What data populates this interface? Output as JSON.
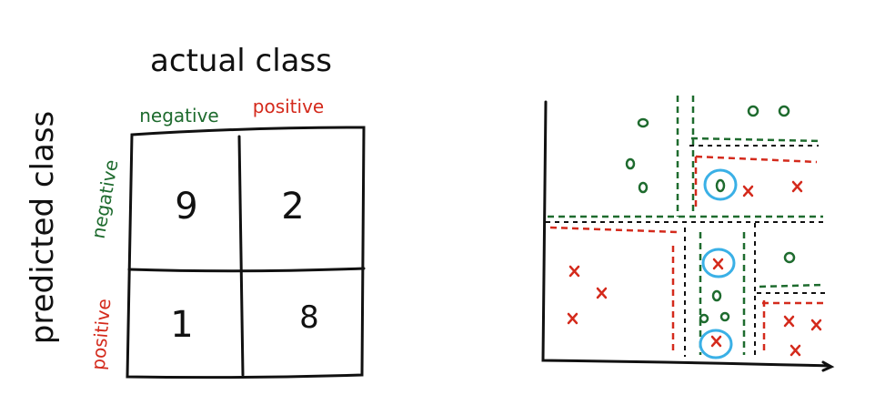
{
  "matrix": {
    "title": "actual class",
    "row_title": "predicted class",
    "columns": [
      "negative",
      "positive"
    ],
    "rows": [
      "negative",
      "positive"
    ],
    "cells": [
      [
        "9",
        "2"
      ],
      [
        "1",
        "8"
      ]
    ]
  }
}
